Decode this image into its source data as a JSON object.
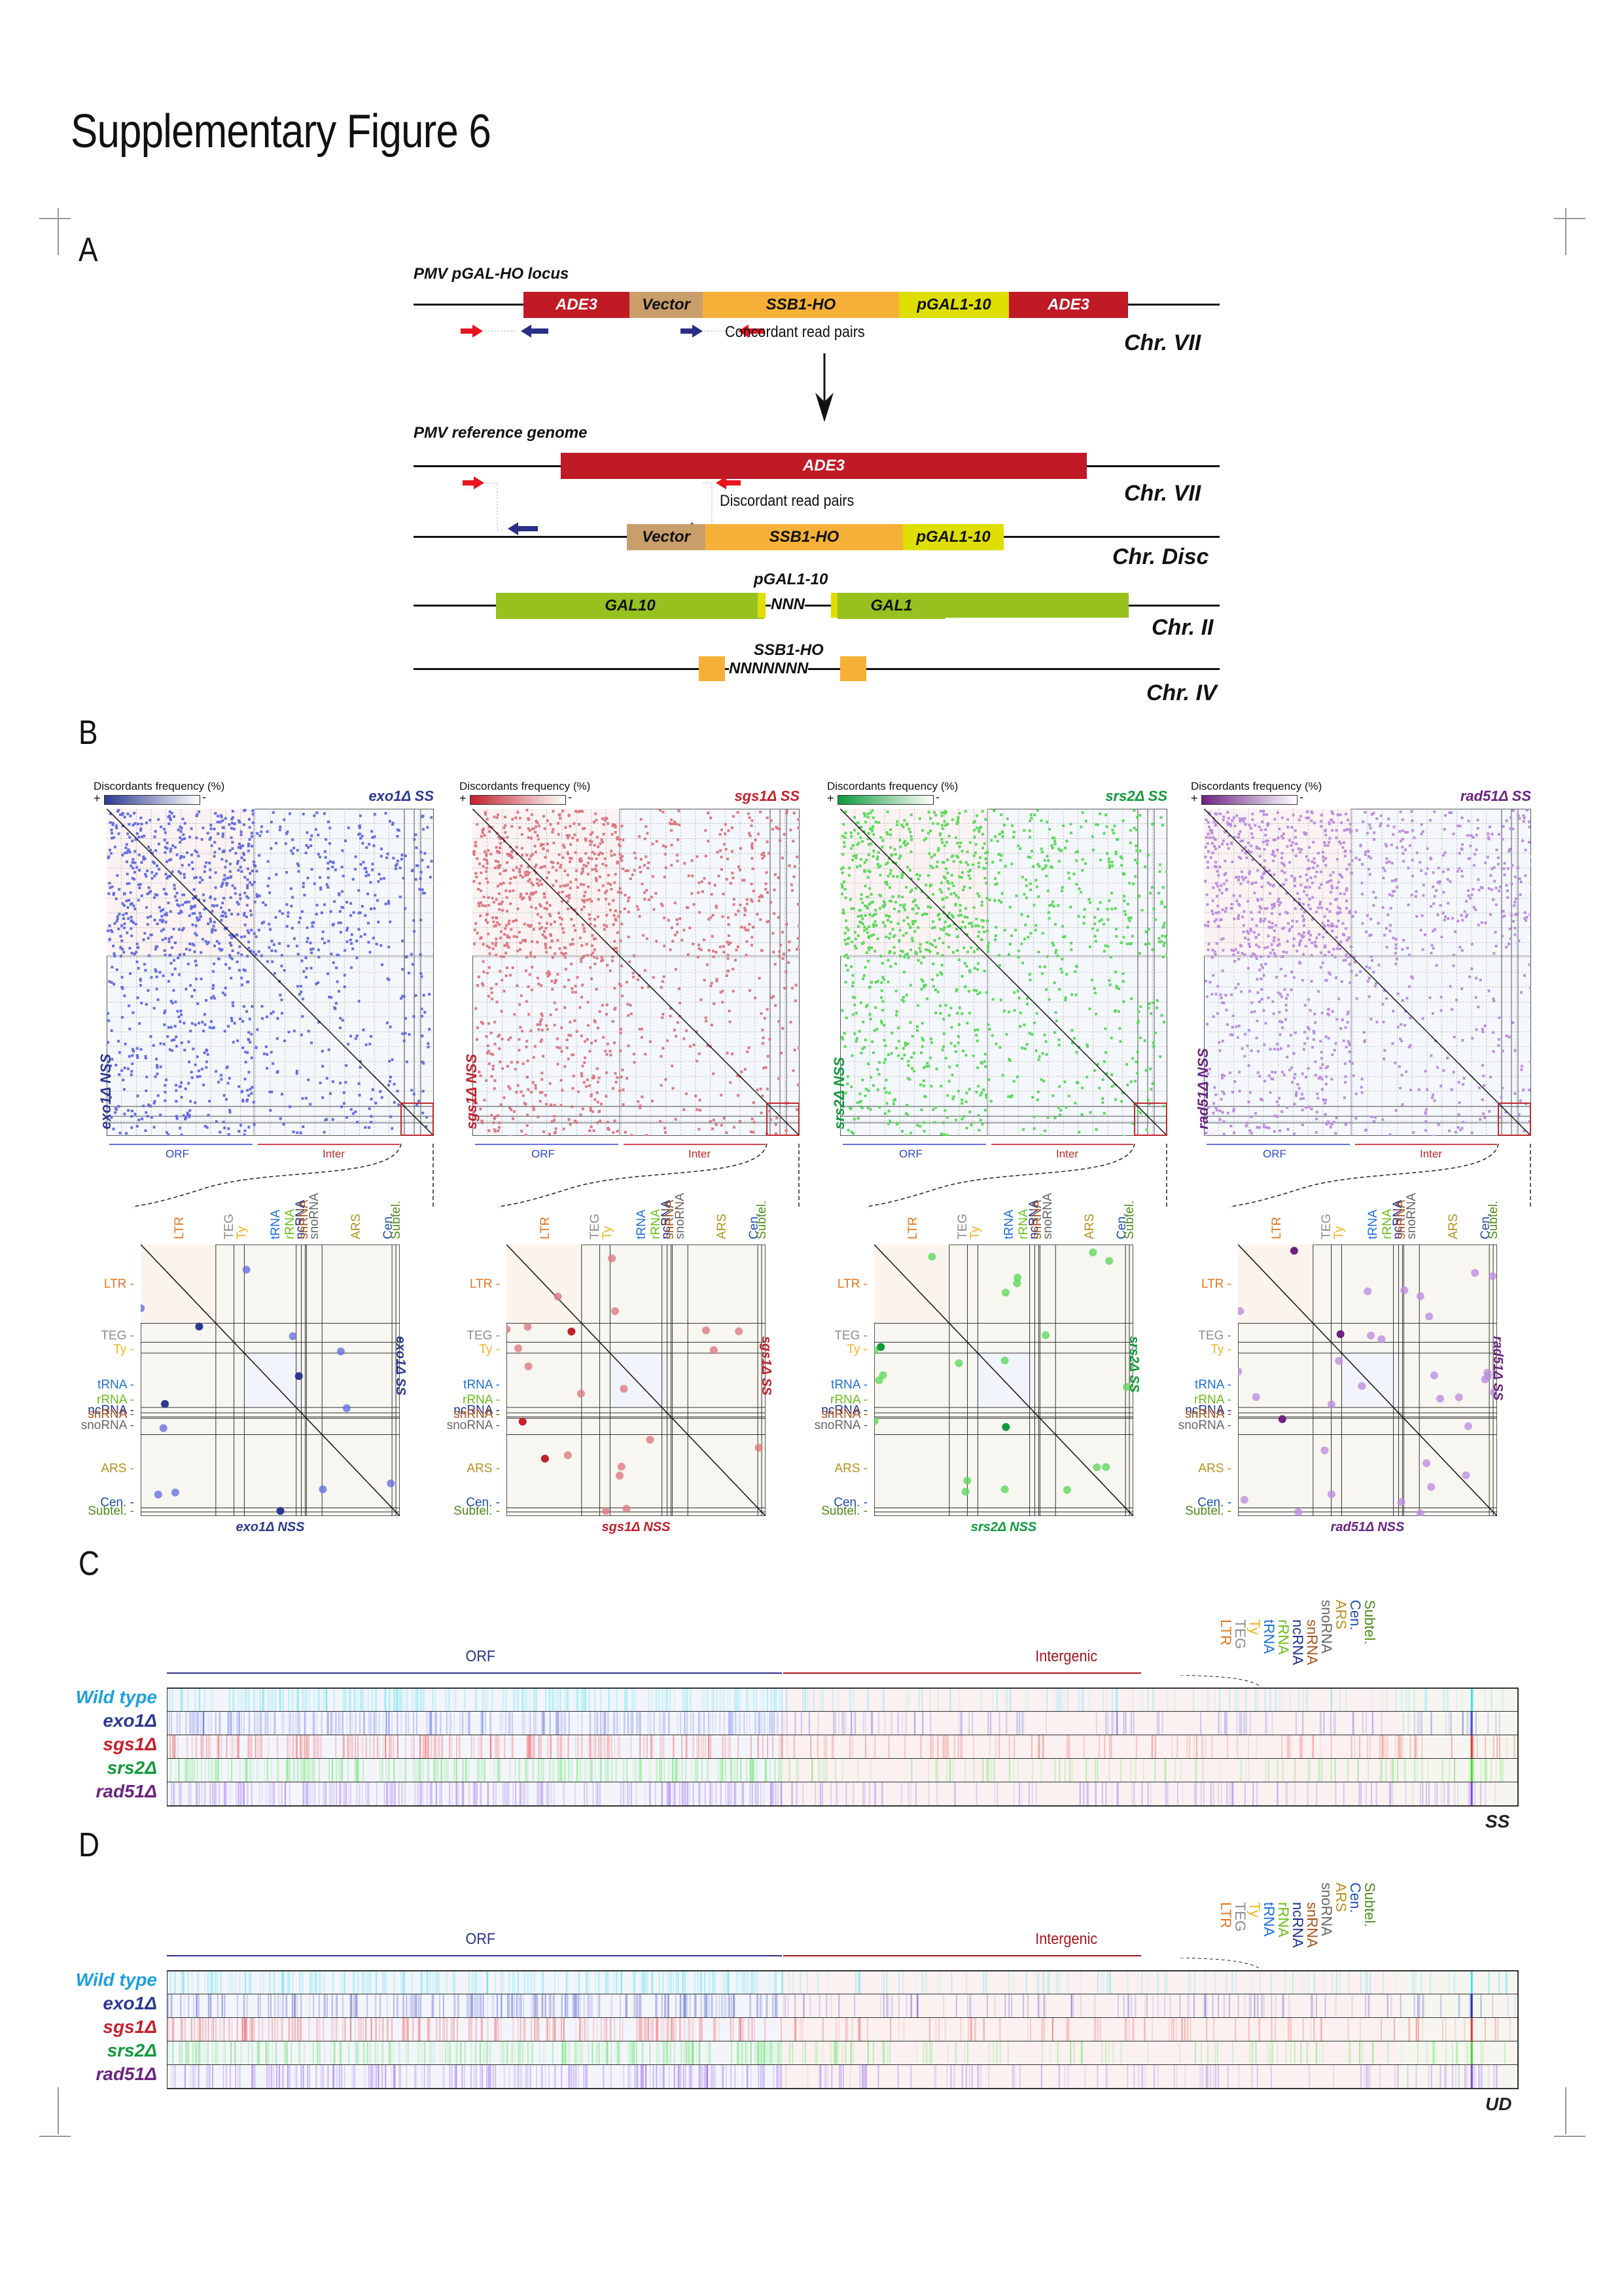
{
  "title": "Supplementary Figure 6",
  "panels": {
    "A": {
      "letter": "A",
      "locus_title": "PMV pGAL-HO locus",
      "ref_title": "PMV reference genome",
      "locus_segments": [
        {
          "label": "ADE3",
          "color": "#c01a26",
          "text_color": "#ffffff"
        },
        {
          "label": "Vector",
          "color": "#c99e6b",
          "text_color": "#111111"
        },
        {
          "label": "SSB1-HO",
          "color": "#f6b038",
          "text_color": "#111111"
        },
        {
          "label": "pGAL1-10",
          "color": "#dede00",
          "text_color": "#111111"
        },
        {
          "label": "ADE3",
          "color": "#c01a26",
          "text_color": "#ffffff"
        }
      ],
      "concordant_label": "Concordant read pairs",
      "discordant_label": "Discordant read pairs",
      "ref_ade3": "ADE3",
      "disc_segments": [
        {
          "label": "Vector",
          "color": "#c99e6b"
        },
        {
          "label": "SSB1-HO",
          "color": "#f6b038"
        },
        {
          "label": "pGAL1-10",
          "color": "#dede00"
        }
      ],
      "gal_title": "pGAL1-10",
      "gal10": "GAL10",
      "gal1": "GAL1",
      "gal_gap": "NNN",
      "ssb_title": "SSB1-HO",
      "ssb_gap": "NNNNNNN",
      "chr_labels": [
        "Chr. VII",
        "Chr. VII",
        "Chr. Disc",
        "Chr. II",
        "Chr. IV"
      ],
      "colors": {
        "red_arrow": "#e8141e",
        "blue_arrow": "#2b2f86",
        "gal_green": "#96c11f"
      }
    },
    "B": {
      "letter": "B",
      "legend_title": "Discordants frequency (%)",
      "legend_plus": "+",
      "legend_minus": "-",
      "axis_orf": "ORF",
      "axis_inter": "Inter",
      "categories": [
        "LTR",
        "TEG",
        "Ty",
        "tRNA",
        "rRNA",
        "ncRNA",
        "snRNA",
        "snoRNA",
        "ARS",
        "Cen.",
        "Subtel."
      ],
      "category_colors": [
        "#e5761e",
        "#8d8d8d",
        "#f2b21b",
        "#1f6fd8",
        "#6cbd1a",
        "#1c2f8f",
        "#a8531a",
        "#666666",
        "#b8901c",
        "#1a4fb0",
        "#4e8a1a"
      ],
      "strains": [
        {
          "name": "exo1Δ",
          "ss_label": "exo1Δ SS",
          "nss_label": "exo1Δ NSS",
          "color": "#2b3990",
          "dot": "#6670e0"
        },
        {
          "name": "sgs1Δ",
          "ss_label": "sgs1Δ SS",
          "nss_label": "sgs1Δ NSS",
          "color": "#c1202c",
          "dot": "#dc7a82"
        },
        {
          "name": "srs2Δ",
          "ss_label": "srs2Δ SS",
          "nss_label": "srs2Δ NSS",
          "color": "#0f9a3a",
          "dot": "#5ed95e"
        },
        {
          "name": "rad51Δ",
          "ss_label": "rad51Δ SS",
          "nss_label": "rad51Δ NSS",
          "color": "#6a2380",
          "dot": "#bd8ee0"
        }
      ]
    },
    "C": {
      "letter": "C",
      "region_orf": "ORF",
      "region_inter": "Intergenic",
      "categories": [
        "LTR",
        "TEG",
        "Ty",
        "tRNA",
        "rRNA",
        "ncRNA",
        "snRNA",
        "snoRNA",
        "ARS",
        "Cen.",
        "Subtel."
      ],
      "rows": [
        {
          "label": "Wild type",
          "color": "#1ea0dc",
          "strip": "#3ee0f0"
        },
        {
          "label": "exo1Δ",
          "color": "#2b3990",
          "strip": "#4050e0"
        },
        {
          "label": "sgs1Δ",
          "color": "#c1202c",
          "strip": "#f03030"
        },
        {
          "label": "srs2Δ",
          "color": "#0f9a3a",
          "strip": "#30e030"
        },
        {
          "label": "rad51Δ",
          "color": "#6a2380",
          "strip": "#8040f0"
        }
      ],
      "tag": "SS"
    },
    "D": {
      "letter": "D",
      "region_orf": "ORF",
      "region_inter": "Intergenic",
      "categories": [
        "LTR",
        "TEG",
        "Ty",
        "tRNA",
        "rRNA",
        "ncRNA",
        "snRNA",
        "snoRNA",
        "ARS",
        "Cen.",
        "Subtel."
      ],
      "rows": [
        {
          "label": "Wild type",
          "color": "#1ea0dc",
          "strip": "#3ee0f0"
        },
        {
          "label": "exo1Δ",
          "color": "#2b3990",
          "strip": "#2030c0"
        },
        {
          "label": "sgs1Δ",
          "color": "#c1202c",
          "strip": "#f03030"
        },
        {
          "label": "srs2Δ",
          "color": "#0f9a3a",
          "strip": "#30e030"
        },
        {
          "label": "rad51Δ",
          "color": "#6a2380",
          "strip": "#8040f0"
        }
      ],
      "tag": "UD"
    }
  }
}
